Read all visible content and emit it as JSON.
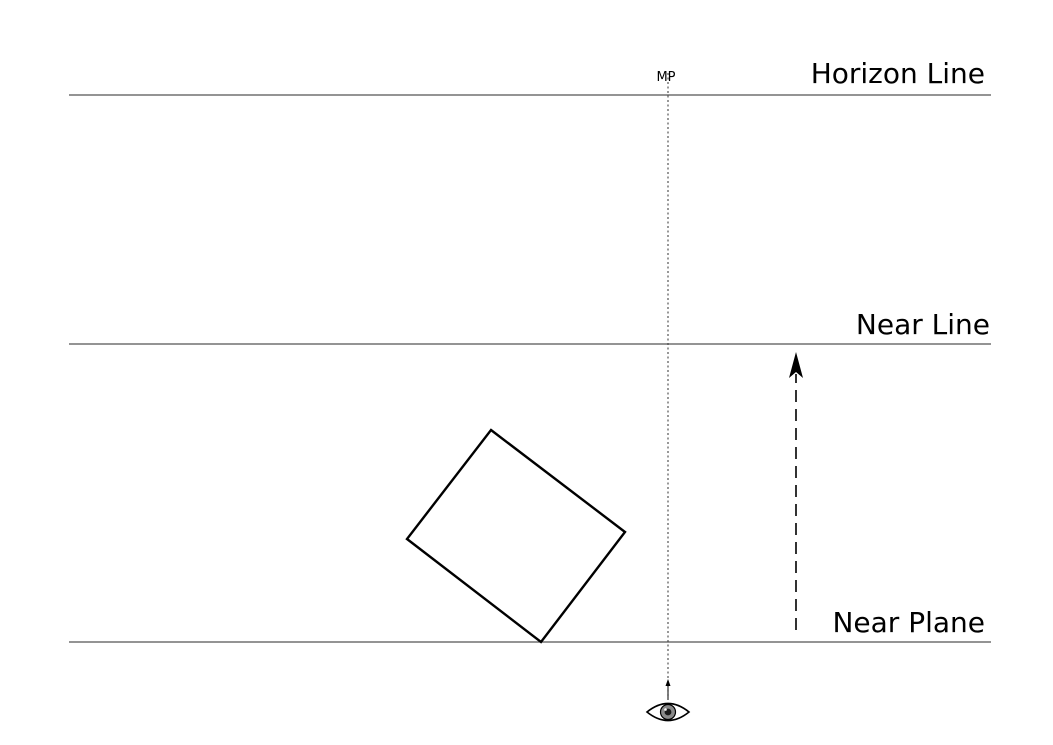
{
  "labels": {
    "horizon_line": "Horizon Line",
    "near_line": "Near Line",
    "near_plane": "Near Plane",
    "measuring_point": "MP"
  },
  "icons": {
    "viewer": "eye-icon"
  },
  "colors": {
    "line": "#555555",
    "ink": "#000000",
    "eye_iris": "#8a8a8a"
  }
}
